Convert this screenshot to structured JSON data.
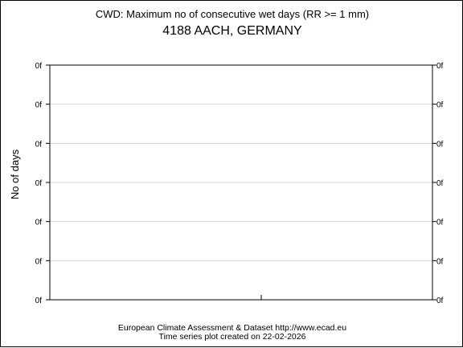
{
  "header": {
    "title": "CWD: Maximum no of consecutive wet days (RR >= 1 mm)",
    "subtitle": "4188 AACH, GERMANY"
  },
  "footer": {
    "line1": "European Climate Assessment & Dataset  http://www.ecad.eu",
    "line2": "Time series plot created on 22-02-2026"
  },
  "chart_data": {
    "type": "line",
    "title": "CWD: Maximum no of consecutive wet days (RR >= 1 mm)",
    "subtitle": "4188 AACH, GERMANY",
    "xlabel": "",
    "ylabel": "No of days",
    "y_tick_labels": [
      "0f",
      "0f",
      "0f",
      "0f",
      "0f",
      "0f",
      "0f"
    ],
    "series": [],
    "grid": true,
    "legend": "none"
  }
}
